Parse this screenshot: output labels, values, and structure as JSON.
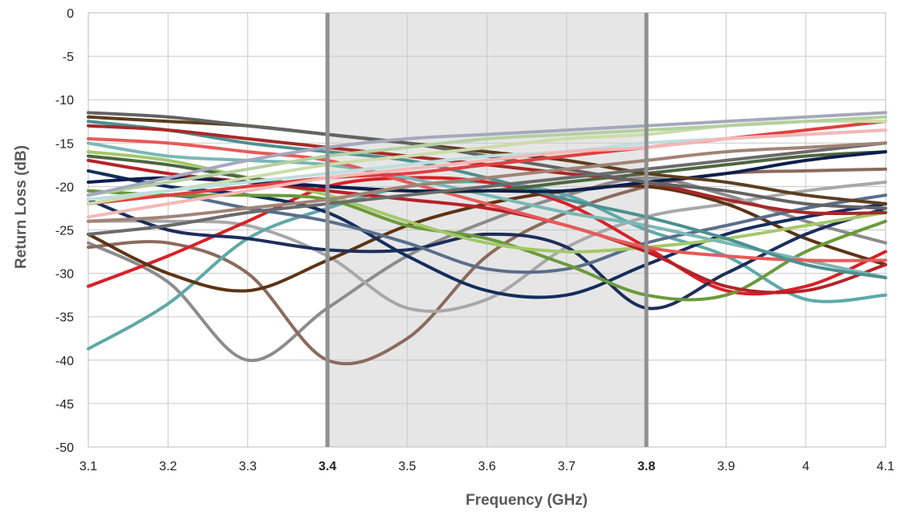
{
  "chart_data": {
    "type": "line",
    "title": "",
    "xlabel": "Frequency (GHz)",
    "ylabel": "Return Loss (dB)",
    "xlim": [
      3.1,
      4.1
    ],
    "ylim": [
      -50,
      0
    ],
    "x_ticks": [
      "3.1",
      "3.2",
      "3.3",
      "3.4",
      "3.5",
      "3.6",
      "3.7",
      "3.8",
      "3.9",
      "4",
      "4.1"
    ],
    "x_ticks_bold": [
      "3.4",
      "3.8"
    ],
    "y_ticks": [
      "0",
      "-5",
      "-10",
      "-15",
      "-20",
      "-25",
      "-30",
      "-35",
      "-40",
      "-45",
      "-50"
    ],
    "grid": true,
    "legend": "none",
    "highlight_band": {
      "from": 3.4,
      "to": 3.8,
      "fill": "#e6e6e6",
      "edge_color": "#909090"
    },
    "x": [
      3.1,
      3.2,
      3.3,
      3.4,
      3.5,
      3.6,
      3.7,
      3.8,
      3.9,
      4.0,
      4.1
    ],
    "series": [
      {
        "color": "#8c8c8c",
        "values": [
          -26.5,
          -31,
          -40,
          -34,
          -28,
          -24,
          -21,
          -19,
          -21,
          -24,
          -26.5
        ]
      },
      {
        "color": "#8c6a5e",
        "values": [
          -27,
          -26.5,
          -30,
          -40,
          -37.5,
          -28,
          -23,
          -20,
          -18.5,
          -18.2,
          -18
        ]
      },
      {
        "color": "#a8a8a8",
        "values": [
          -24,
          -24,
          -24.5,
          -28,
          -34,
          -33,
          -27,
          -23.5,
          -22,
          -20.5,
          -19.5
        ]
      },
      {
        "color": "#5fa8a8",
        "values": [
          -38.7,
          -33.5,
          -26,
          -22.5,
          -20,
          -19.5,
          -21,
          -25,
          -28,
          -33,
          -32.5
        ]
      },
      {
        "color": "#d92027",
        "values": [
          -31.5,
          -28,
          -24,
          -20,
          -19,
          -19.5,
          -22,
          -27,
          -32,
          -31.5,
          -27.5
        ]
      },
      {
        "color": "#5c3416",
        "values": [
          -25.5,
          -30,
          -32,
          -28.5,
          -24.5,
          -22,
          -20.5,
          -20,
          -22,
          -26,
          -29
        ]
      },
      {
        "color": "#1e2d5a",
        "values": [
          -21.5,
          -25,
          -26,
          -27.3,
          -27.3,
          -25.5,
          -27,
          -34,
          -30,
          -25.5,
          -22.5
        ]
      },
      {
        "color": "#142e5c",
        "values": [
          -18.2,
          -20,
          -21,
          -23,
          -28,
          -32,
          -32.5,
          -29,
          -25.5,
          -23.5,
          -22
        ]
      },
      {
        "color": "#5a6e8c",
        "values": [
          -22,
          -21,
          -22.5,
          -24,
          -26.5,
          -29.5,
          -29.5,
          -26.5,
          -24.5,
          -22.5,
          -21
        ]
      },
      {
        "color": "#6b9a3a",
        "values": [
          -20.5,
          -21,
          -21,
          -21.5,
          -24.5,
          -26,
          -29,
          -32.5,
          -32.5,
          -27.5,
          -24
        ]
      },
      {
        "color": "#a3c86a",
        "values": [
          -16,
          -17,
          -19,
          -21,
          -24,
          -26.5,
          -27.5,
          -27,
          -26,
          -24.5,
          -23
        ]
      },
      {
        "color": "#b52228",
        "values": [
          -17,
          -18.5,
          -19.5,
          -20.5,
          -21.5,
          -22.5,
          -24.5,
          -27.5,
          -31.5,
          -32,
          -29
        ]
      },
      {
        "color": "#7ab8b5",
        "values": [
          -15,
          -16.5,
          -17,
          -17.5,
          -19,
          -21,
          -23,
          -24.5,
          -26.5,
          -28.5,
          -30.5
        ]
      },
      {
        "color": "#e85a5a",
        "values": [
          -14.5,
          -15,
          -16,
          -17,
          -19.5,
          -22,
          -24.5,
          -27,
          -28,
          -28.5,
          -28.5
        ]
      },
      {
        "color": "#4d9090",
        "values": [
          -12.5,
          -13.5,
          -15,
          -16,
          -17,
          -19,
          -21.5,
          -23.5,
          -26,
          -29,
          -30.5
        ]
      },
      {
        "color": "#a82828",
        "values": [
          -13,
          -13.5,
          -14.5,
          -15.5,
          -16.5,
          -17.5,
          -18.5,
          -19.5,
          -21.5,
          -23,
          -23
        ]
      },
      {
        "color": "#4d6640",
        "values": [
          -16.5,
          -17.5,
          -19,
          -20,
          -20.5,
          -20.5,
          -19.5,
          -18.5,
          -17.5,
          -16.5,
          -16
        ]
      },
      {
        "color": "#0d1e4d",
        "values": [
          -19.5,
          -19,
          -19.5,
          -20,
          -20.5,
          -20.5,
          -20.5,
          -19.5,
          -18.5,
          -17,
          -16
        ]
      },
      {
        "color": "#5c3e1e",
        "values": [
          -12,
          -12.5,
          -13,
          -14,
          -15,
          -16,
          -17,
          -18.5,
          -19.5,
          -21,
          -22
        ]
      },
      {
        "color": "#636363",
        "values": [
          -11.5,
          -12,
          -13,
          -14,
          -15,
          -16.5,
          -18,
          -19.5,
          -20.5,
          -22,
          -22.5
        ]
      },
      {
        "color": "#6b6b6b",
        "values": [
          -25.5,
          -24.5,
          -23,
          -22,
          -21,
          -20,
          -19,
          -18,
          -17,
          -16,
          -15
        ]
      },
      {
        "color": "#a08478",
        "values": [
          -24,
          -23.5,
          -22.5,
          -21.5,
          -20,
          -19,
          -18,
          -17,
          -16,
          -15.5,
          -15
        ]
      },
      {
        "color": "#e04040",
        "values": [
          -22,
          -21,
          -20,
          -19,
          -18.5,
          -17.5,
          -16.5,
          -15.5,
          -14.5,
          -13.5,
          -12.5
        ]
      },
      {
        "color": "#ccdca8",
        "values": [
          -22,
          -20.5,
          -19,
          -17.5,
          -16.5,
          -15.5,
          -14.5,
          -14,
          -13,
          -12.5,
          -12.5
        ]
      },
      {
        "color": "#b4d0a0",
        "values": [
          -21,
          -19.5,
          -18,
          -16.5,
          -15.5,
          -14.5,
          -14,
          -13.5,
          -13,
          -12.5,
          -12
        ]
      },
      {
        "color": "#a5a8bc",
        "values": [
          -21,
          -19,
          -17,
          -15.5,
          -14.5,
          -14,
          -13.5,
          -13,
          -12.5,
          -12,
          -11.5
        ]
      },
      {
        "color": "#bfdede",
        "values": [
          -21.5,
          -20.5,
          -19.5,
          -18.5,
          -17.5,
          -16.5,
          -16,
          -15,
          -14.5,
          -14,
          -13.5
        ]
      },
      {
        "color": "#f4b8b8",
        "values": [
          -23.5,
          -22,
          -20.5,
          -19,
          -18,
          -17,
          -16,
          -15.5,
          -14.5,
          -14,
          -13.5
        ]
      }
    ]
  }
}
